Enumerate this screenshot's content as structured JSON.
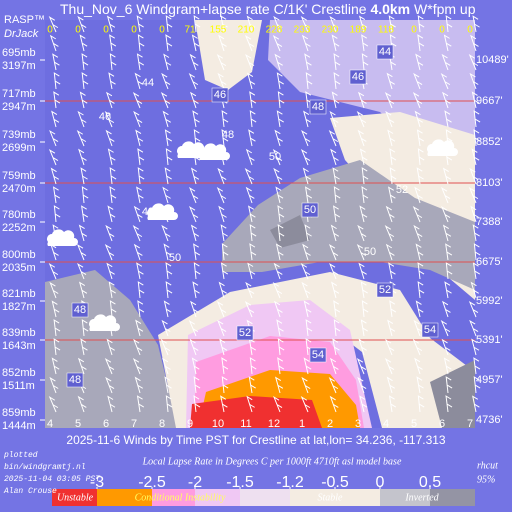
{
  "chart_data": {
    "type": "windgram",
    "brand": "RASP™",
    "brand_author": "DrJack",
    "title": {
      "prefix": "Thu_Nov_6 Windgram+lapse rate C/1K'  Crestline",
      "height": "4.0km",
      "suffix": "W*fpm up"
    },
    "wstar": [
      0,
      0,
      0,
      0,
      0,
      71,
      155,
      210,
      228,
      233,
      230,
      189,
      118,
      0,
      0,
      0
    ],
    "categories": [
      "4",
      "5",
      "6",
      "7",
      "8",
      "9",
      "10",
      "11",
      "12",
      "1",
      "2",
      "3",
      "4",
      "5",
      "6",
      "7"
    ],
    "levels": [
      {
        "pressure": "695mb",
        "height_m": "3197m",
        "height_ft": "10489'"
      },
      {
        "pressure": "717mb",
        "height_m": "2947m",
        "height_ft": "9667'"
      },
      {
        "pressure": "739mb",
        "height_m": "2699m",
        "height_ft": "8852'"
      },
      {
        "pressure": "759mb",
        "height_m": "2470m",
        "height_ft": "8103'"
      },
      {
        "pressure": "780mb",
        "height_m": "2252m",
        "height_ft": "7388'"
      },
      {
        "pressure": "800mb",
        "height_m": "2035m",
        "height_ft": "6675'"
      },
      {
        "pressure": "821mb",
        "height_m": "1827m",
        "height_ft": "5992'"
      },
      {
        "pressure": "839mb",
        "height_m": "1643m",
        "height_ft": "5391'"
      },
      {
        "pressure": "852mb",
        "height_m": "1511m",
        "height_ft": "4957'"
      },
      {
        "pressure": "859mb",
        "height_m": "1444m",
        "height_ft": "4736'"
      }
    ],
    "contour_labels": [
      44,
      44,
      46,
      46,
      46,
      48,
      48,
      50,
      48,
      50,
      52,
      50,
      50,
      52,
      54,
      52,
      54,
      48,
      48
    ],
    "xlabel": "2025-11-6 Winds by Time PST for Crestline at lat,lon= 34.236, -117.313",
    "footer": [
      "plotted",
      "bin/windgramtj.nl",
      "2025-11-04 03:05 PST",
      "Alan Crouse"
    ],
    "colorbar": {
      "title": "Local Lapse Rate in Degrees C per 1000ft  4710ft asl model base",
      "rhcut": "rhcut",
      "rhcut_value": "95%",
      "ticks": [
        -3,
        -2.5,
        -2,
        -1.5,
        -1.2,
        -0.5,
        0,
        0.5
      ],
      "bands": [
        "Unstable",
        "Conditional Instability",
        "Stable",
        "Inverted"
      ]
    }
  }
}
